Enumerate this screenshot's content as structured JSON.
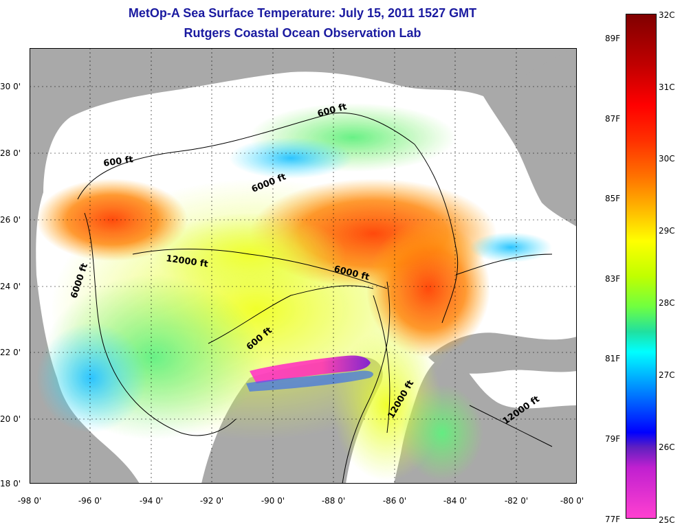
{
  "title": "MetOp-A Sea Surface Temperature:  July 15, 2011 1527 GMT",
  "subtitle": "Rutgers Coastal Ocean Observation Lab",
  "x_tick_labels": [
    "-98 0'",
    "-96 0'",
    "-94 0'",
    "-92 0'",
    "-90 0'",
    "-88 0'",
    "-86 0'",
    "-84 0'",
    "-82 0'",
    "-80 0'"
  ],
  "y_tick_labels": [
    "30 0'",
    "28 0'",
    "26 0'",
    "24 0'",
    "22 0'",
    "20 0'",
    "18 0'"
  ],
  "contour_labels": [
    "600 ft",
    "600 ft",
    "600 ft",
    "6000 ft",
    "6000 ft",
    "6000 ft",
    "12000 ft",
    "12000 ft",
    "12000 ft"
  ],
  "colorbar": {
    "celsius_labels": [
      "32C",
      "31C",
      "30C",
      "29C",
      "28C",
      "27C",
      "26C",
      "25C"
    ],
    "fahrenheit_labels": [
      "89F",
      "87F",
      "85F",
      "83F",
      "81F",
      "79F",
      "77F"
    ]
  },
  "colors": {
    "title": "#1a1aa0",
    "land": "#a9a9a9",
    "no_data": "#ffffff",
    "warm": "#ff6000",
    "cool": "#00c0ff"
  }
}
